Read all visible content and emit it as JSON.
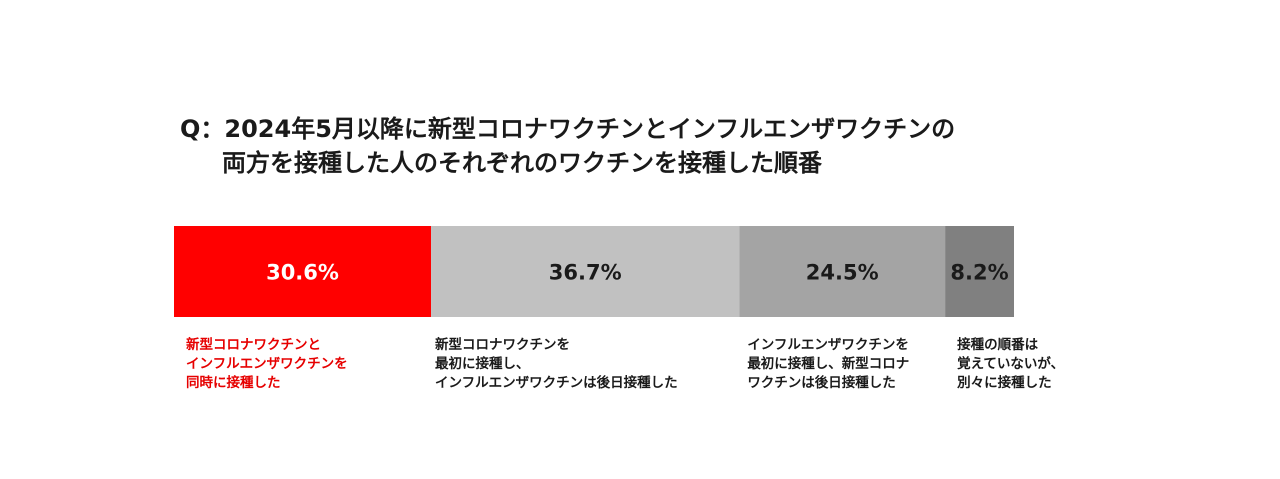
{
  "chart_data": {
    "type": "bar",
    "orientation": "horizontal-stacked-100",
    "title": [
      "Q：2024年5月以降に新型コロナワクチンとインフルエンザワクチンの",
      "両方を接種した人のそれぞれのワクチンを接種した順番"
    ],
    "categories": [
      [
        "新型コロナワクチンと",
        "インフルエンザワクチンを",
        "同時に接種した"
      ],
      [
        "新型コロナワクチンを",
        "最初に接種し、",
        "インフルエンザワクチンは後日接種した"
      ],
      [
        "インフルエンザワクチンを",
        "最初に接種し、新型コロナ",
        "ワクチンは後日接種した"
      ],
      [
        "接種の順番は",
        "覚えていないが、",
        "別々に接種した"
      ]
    ],
    "values": [
      30.6,
      36.7,
      24.5,
      8.2
    ],
    "value_labels": [
      "30.6%",
      "36.7%",
      "24.5%",
      "8.2%"
    ],
    "colors": [
      "#ff0000",
      "#c1c1c1",
      "#a4a4a4",
      "#808080"
    ],
    "label_colors": [
      "#ffffff",
      "#1a1a1a",
      "#1a1a1a",
      "#1a1a1a"
    ],
    "category_label_colors": [
      "#e60000",
      "#1a1a1a",
      "#1a1a1a",
      "#1a1a1a"
    ],
    "xlim": [
      0,
      100
    ]
  }
}
